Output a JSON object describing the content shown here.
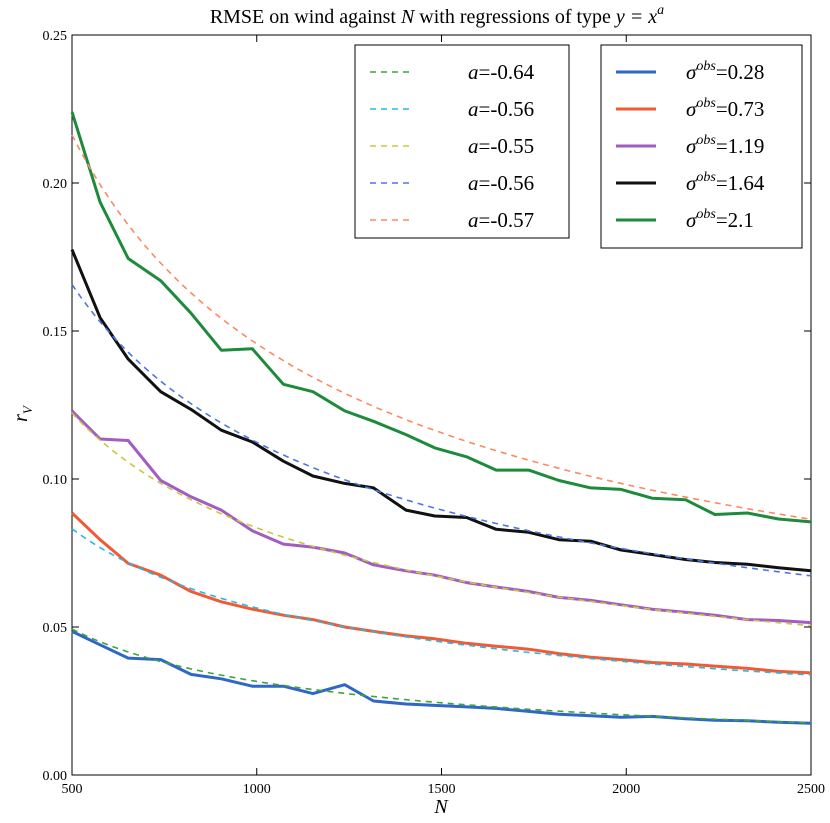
{
  "chart_data": {
    "type": "line",
    "title_parts": {
      "prefix": "RMSE on wind against ",
      "N": "N",
      "middle": " with regressions of type ",
      "formula": "y = x",
      "exp": "a"
    },
    "xlabel": "N",
    "ylabel": {
      "base": "r",
      "sub": "V"
    },
    "xlim": [
      500,
      2500
    ],
    "ylim": [
      0,
      0.25
    ],
    "xticks": [
      "500",
      "1000",
      "1500",
      "2000",
      "2500"
    ],
    "yticks": [
      "0.00",
      "0.05",
      "0.10",
      "0.15",
      "0.20",
      "0.25"
    ],
    "grid": false,
    "x": [
      500,
      576,
      652,
      740,
      822,
      904,
      988,
      1072,
      1152,
      1238,
      1316,
      1404,
      1482,
      1568,
      1648,
      1736,
      1818,
      1904,
      1986,
      2070,
      2160,
      2240,
      2328,
      2412,
      2500
    ],
    "series": [
      {
        "name_sym": "σ",
        "name_sup": "obs",
        "name_val": "=0.28",
        "color": "#2f66c8",
        "values": [
          0.0485,
          0.044,
          0.0395,
          0.039,
          0.034,
          0.0325,
          0.03,
          0.03,
          0.0275,
          0.0305,
          0.025,
          0.024,
          0.0235,
          0.023,
          0.0225,
          0.0215,
          0.0205,
          0.02,
          0.0195,
          0.0198,
          0.019,
          0.0185,
          0.0183,
          0.0178,
          0.0175
        ]
      },
      {
        "name_sym": "σ",
        "name_sup": "obs",
        "name_val": "=0.73",
        "color": "#f05a35",
        "values": [
          0.0885,
          0.0795,
          0.0715,
          0.0675,
          0.062,
          0.0585,
          0.056,
          0.054,
          0.0525,
          0.05,
          0.0485,
          0.047,
          0.046,
          0.0445,
          0.0435,
          0.0425,
          0.041,
          0.0398,
          0.039,
          0.038,
          0.0375,
          0.0368,
          0.036,
          0.035,
          0.0345
        ]
      },
      {
        "name_sym": "σ",
        "name_sup": "obs",
        "name_val": "=1.19",
        "color": "#a35cc2",
        "values": [
          0.123,
          0.1135,
          0.113,
          0.0995,
          0.094,
          0.0895,
          0.0825,
          0.078,
          0.077,
          0.075,
          0.071,
          0.069,
          0.0675,
          0.065,
          0.0635,
          0.062,
          0.06,
          0.059,
          0.0575,
          0.056,
          0.055,
          0.054,
          0.0525,
          0.0522,
          0.0515
        ]
      },
      {
        "name_sym": "σ",
        "name_sup": "obs",
        "name_val": "=1.64",
        "color": "#111111",
        "values": [
          0.1775,
          0.1545,
          0.1405,
          0.1295,
          0.1235,
          0.1165,
          0.1125,
          0.106,
          0.101,
          0.0985,
          0.097,
          0.0895,
          0.0875,
          0.087,
          0.083,
          0.082,
          0.0795,
          0.079,
          0.076,
          0.0745,
          0.0728,
          0.0718,
          0.0712,
          0.07,
          0.069
        ]
      },
      {
        "name_sym": "σ",
        "name_sup": "obs",
        "name_val": "=2.1",
        "color": "#1e8a3c",
        "values": [
          0.224,
          0.1935,
          0.1745,
          0.167,
          0.156,
          0.1435,
          0.144,
          0.132,
          0.1295,
          0.123,
          0.1195,
          0.115,
          0.1105,
          0.1075,
          0.103,
          0.103,
          0.0995,
          0.097,
          0.0965,
          0.0935,
          0.093,
          0.088,
          0.0885,
          0.0865,
          0.0855
        ]
      }
    ],
    "fits": [
      {
        "name_sym": "a",
        "name_val": "=-0.64",
        "color": "#3aa63a",
        "a": -0.64,
        "c": 2.63
      },
      {
        "name_sym": "a",
        "name_val": "=-0.56",
        "color": "#29b8e0",
        "a": -0.56,
        "c": 2.7
      },
      {
        "name_sym": "a",
        "name_val": "=-0.55",
        "color": "#c8c83c",
        "a": -0.55,
        "c": 3.73
      },
      {
        "name_sym": "a",
        "name_val": "=-0.56",
        "color": "#4d77e0",
        "a": -0.56,
        "c": 5.38
      },
      {
        "name_sym": "a",
        "name_val": "=-0.57",
        "color": "#fa8a64",
        "a": -0.57,
        "c": 7.47
      }
    ],
    "legends": [
      "top-center",
      "top-right"
    ]
  }
}
